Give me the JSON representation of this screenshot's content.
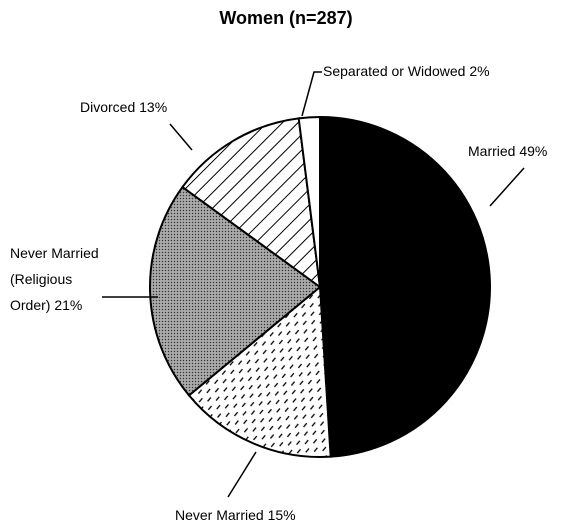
{
  "chart_data": {
    "type": "pie",
    "title": "Women (n=287)",
    "categories": [
      "Married",
      "Never Married",
      "Never Married (Religious Order)",
      "Divorced",
      "Separated or Widowed"
    ],
    "values": [
      49,
      15,
      21,
      13,
      2
    ],
    "value_labels": [
      "49%",
      "15%",
      "21%",
      "13%",
      "2%"
    ],
    "colors": [
      "#000000",
      "#ffffff",
      "#8c8c8c",
      "#ffffff",
      "#ffffff"
    ],
    "patterns": [
      "solid",
      "dashes",
      "stipple",
      "hatch",
      "solid"
    ]
  }
}
